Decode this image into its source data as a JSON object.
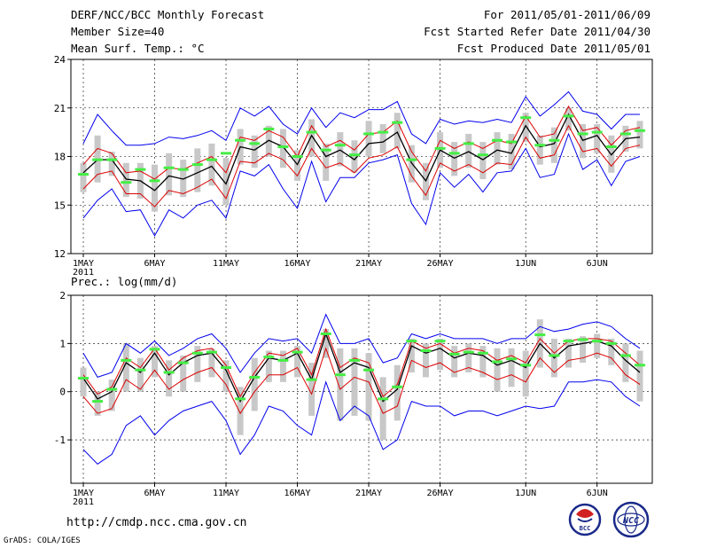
{
  "header": {
    "title": "DERF/NCC/BCC Monthly Forecast",
    "member_size": "Member Size=40",
    "variable": "Mean Surf. Temp.: °C",
    "period": "For 2011/05/01-2011/06/09",
    "started": "Fcst Started Refer Date 2011/04/30",
    "produced": "Fcst Produced Date 2011/05/01"
  },
  "footer": {
    "url": "http://cmdp.ncc.cma.gov.cn",
    "grads": "GrADS: COLA/IGES",
    "logo_bcc": "BCC",
    "logo_ncc": "NCC"
  },
  "colors": {
    "envelope": "#0000ee",
    "spread": "#dd0000",
    "mean": "#000000",
    "box": "#c8c8c8",
    "obs": "#44ee44"
  },
  "chart_data": [
    {
      "type": "line",
      "id": "temperature",
      "title": "Mean Surf. Temp.: °C",
      "ylim": [
        12,
        24
      ],
      "yticks": [
        12,
        15,
        18,
        21,
        24
      ],
      "x_tick_labels": [
        {
          "day": 1,
          "label": "1MAY",
          "sub": "2011"
        },
        {
          "day": 6,
          "label": "6MAY"
        },
        {
          "day": 11,
          "label": "11MAY"
        },
        {
          "day": 16,
          "label": "16MAY"
        },
        {
          "day": 21,
          "label": "21MAY"
        },
        {
          "day": 26,
          "label": "26MAY"
        },
        {
          "day": 32,
          "label": "1JUN"
        },
        {
          "day": 37,
          "label": "6JUN"
        }
      ],
      "days": 40,
      "series": [
        {
          "name": "mean",
          "values": [
            17.0,
            17.8,
            17.8,
            16.6,
            16.5,
            15.9,
            16.8,
            16.6,
            17.0,
            17.4,
            16.3,
            18.6,
            18.4,
            19.0,
            18.6,
            17.5,
            19.3,
            18.0,
            18.4,
            17.8,
            18.8,
            18.9,
            19.5,
            17.6,
            16.5,
            18.4,
            17.9,
            18.3,
            17.8,
            18.4,
            18.2,
            19.9,
            18.6,
            18.8,
            20.6,
            19.0,
            19.3,
            18.1,
            19.1,
            19.2
          ]
        },
        {
          "name": "upper_spread",
          "values": [
            17.5,
            18.5,
            18.2,
            17.0,
            17.1,
            16.6,
            17.3,
            17.2,
            17.6,
            18.0,
            17.0,
            19.2,
            19.0,
            19.6,
            19.2,
            18.0,
            19.9,
            18.6,
            19.0,
            18.4,
            19.4,
            19.5,
            20.2,
            18.3,
            17.1,
            19.0,
            18.5,
            18.9,
            18.5,
            19.0,
            18.8,
            20.5,
            19.2,
            19.4,
            21.1,
            19.6,
            19.8,
            18.7,
            19.6,
            19.8
          ]
        },
        {
          "name": "lower_spread",
          "values": [
            16.0,
            16.9,
            17.1,
            15.7,
            15.7,
            14.9,
            15.9,
            15.7,
            16.1,
            16.6,
            15.4,
            17.7,
            17.6,
            18.2,
            17.8,
            16.8,
            18.5,
            17.3,
            17.6,
            17.0,
            17.9,
            18.1,
            18.6,
            16.8,
            15.6,
            17.6,
            17.1,
            17.5,
            17.0,
            17.6,
            17.5,
            19.2,
            17.9,
            18.1,
            19.9,
            18.3,
            18.5,
            17.4,
            18.5,
            18.7
          ]
        },
        {
          "name": "max",
          "values": [
            18.8,
            20.6,
            19.6,
            18.7,
            18.7,
            18.8,
            19.2,
            19.1,
            19.3,
            19.6,
            19.0,
            21.0,
            20.5,
            21.1,
            20.0,
            19.4,
            21.0,
            19.8,
            20.7,
            20.4,
            20.9,
            20.9,
            21.4,
            19.4,
            18.8,
            20.3,
            20.0,
            20.2,
            20.1,
            20.3,
            20.1,
            21.7,
            20.5,
            21.2,
            22.0,
            20.8,
            20.6,
            19.7,
            20.6,
            20.6
          ]
        },
        {
          "name": "min",
          "values": [
            14.2,
            15.3,
            16.0,
            14.6,
            14.7,
            13.1,
            14.7,
            14.2,
            15.0,
            15.3,
            14.2,
            17.1,
            16.8,
            17.5,
            16.0,
            14.8,
            17.7,
            15.2,
            16.7,
            16.7,
            17.6,
            17.8,
            18.1,
            15.1,
            13.8,
            17.0,
            16.1,
            16.9,
            15.8,
            17.0,
            17.1,
            18.5,
            16.7,
            16.9,
            19.4,
            17.2,
            17.8,
            16.2,
            17.7,
            18.0
          ]
        },
        {
          "name": "box_top",
          "values": [
            17.6,
            19.3,
            18.3,
            17.6,
            17.6,
            17.5,
            18.2,
            17.8,
            18.5,
            18.8,
            17.9,
            19.7,
            19.3,
            19.9,
            19.7,
            18.4,
            20.3,
            18.8,
            19.5,
            19.0,
            20.2,
            20.0,
            20.7,
            18.7,
            17.6,
            19.5,
            18.9,
            19.4,
            18.9,
            19.5,
            19.4,
            20.7,
            19.3,
            19.8,
            21.0,
            20.0,
            20.0,
            19.3,
            19.9,
            20.2
          ]
        },
        {
          "name": "box_bottom",
          "values": [
            15.8,
            16.4,
            16.8,
            15.5,
            15.4,
            14.6,
            15.6,
            15.5,
            15.8,
            16.2,
            15.0,
            17.5,
            17.3,
            18.0,
            17.3,
            16.5,
            18.0,
            16.5,
            17.4,
            17.0,
            18.0,
            18.2,
            18.5,
            16.4,
            15.3,
            17.3,
            16.8,
            17.3,
            16.6,
            17.5,
            17.2,
            18.9,
            17.5,
            17.6,
            19.6,
            17.9,
            18.2,
            17.0,
            18.3,
            18.5
          ]
        },
        {
          "name": "observed",
          "values": [
            16.9,
            17.8,
            17.8,
            16.4,
            17.2,
            16.5,
            17.3,
            17.2,
            17.5,
            17.8,
            18.2,
            19.0,
            18.8,
            19.7,
            18.6,
            18.0,
            19.5,
            18.4,
            18.7,
            18.1,
            19.4,
            19.5,
            20.1,
            17.8,
            null,
            18.5,
            18.2,
            18.8,
            18.1,
            19.0,
            18.9,
            20.4,
            18.7,
            19.0,
            20.5,
            19.4,
            19.5,
            18.6,
            19.4,
            19.6
          ]
        }
      ]
    },
    {
      "type": "line",
      "id": "precipitation",
      "title": "Prec.: log(mm/d)",
      "ylim": [
        -1.9,
        2.0
      ],
      "yticks": [
        -1,
        0,
        1,
        2
      ],
      "x_tick_labels": [
        {
          "day": 1,
          "label": "1MAY",
          "sub": "2011"
        },
        {
          "day": 6,
          "label": "6MAY"
        },
        {
          "day": 11,
          "label": "11MAY"
        },
        {
          "day": 16,
          "label": "16MAY"
        },
        {
          "day": 21,
          "label": "21MAY"
        },
        {
          "day": 26,
          "label": "26MAY"
        },
        {
          "day": 32,
          "label": "1JUN"
        },
        {
          "day": 37,
          "label": "6JUN"
        }
      ],
      "days": 40,
      "series": [
        {
          "name": "mean",
          "values": [
            0.28,
            -0.15,
            0.0,
            0.6,
            0.4,
            0.8,
            0.35,
            0.6,
            0.75,
            0.8,
            0.45,
            -0.2,
            0.3,
            0.7,
            0.65,
            0.8,
            0.25,
            1.2,
            0.4,
            0.6,
            0.5,
            -0.2,
            0.05,
            0.95,
            0.8,
            0.9,
            0.7,
            0.8,
            0.75,
            0.55,
            0.65,
            0.5,
            1.0,
            0.7,
            0.95,
            1.0,
            1.05,
            0.95,
            0.65,
            0.4
          ]
        },
        {
          "name": "upper_spread",
          "values": [
            0.35,
            -0.05,
            0.1,
            0.7,
            0.5,
            0.9,
            0.45,
            0.7,
            0.85,
            0.9,
            0.55,
            -0.1,
            0.4,
            0.8,
            0.75,
            0.9,
            0.35,
            1.3,
            0.5,
            0.7,
            0.6,
            -0.1,
            0.15,
            1.05,
            0.9,
            1.0,
            0.8,
            0.9,
            0.85,
            0.65,
            0.75,
            0.6,
            1.1,
            0.8,
            1.05,
            1.1,
            1.1,
            1.05,
            0.8,
            0.55
          ]
        },
        {
          "name": "lower_spread",
          "values": [
            -0.1,
            -0.45,
            -0.35,
            0.25,
            0.05,
            0.45,
            0.05,
            0.25,
            0.4,
            0.5,
            0.15,
            -0.45,
            0.0,
            0.35,
            0.35,
            0.5,
            -0.05,
            0.9,
            0.05,
            0.3,
            0.2,
            -0.45,
            -0.3,
            0.65,
            0.5,
            0.6,
            0.4,
            0.5,
            0.4,
            0.25,
            0.35,
            0.2,
            0.7,
            0.4,
            0.65,
            0.7,
            0.8,
            0.7,
            0.35,
            0.15
          ]
        },
        {
          "name": "max",
          "values": [
            0.8,
            0.3,
            0.4,
            1.0,
            0.8,
            1.05,
            0.75,
            0.9,
            1.1,
            1.2,
            0.9,
            0.4,
            0.8,
            1.1,
            1.05,
            1.1,
            0.8,
            1.6,
            1.0,
            1.0,
            1.1,
            0.6,
            0.7,
            1.2,
            1.1,
            1.2,
            1.1,
            1.1,
            1.1,
            1.0,
            1.1,
            1.1,
            1.35,
            1.25,
            1.3,
            1.4,
            1.45,
            1.35,
            1.1,
            0.9
          ]
        },
        {
          "name": "min",
          "values": [
            -1.2,
            -1.5,
            -1.3,
            -0.7,
            -0.5,
            -0.9,
            -0.6,
            -0.4,
            -0.3,
            -0.2,
            -0.6,
            -1.3,
            -0.9,
            -0.3,
            -0.4,
            -0.7,
            -0.9,
            0.2,
            -0.6,
            -0.3,
            -0.5,
            -1.2,
            -1.0,
            -0.2,
            -0.3,
            -0.3,
            -0.5,
            -0.4,
            -0.4,
            -0.5,
            -0.4,
            -0.3,
            -0.35,
            -0.3,
            0.2,
            0.2,
            0.25,
            0.2,
            -0.1,
            -0.3
          ]
        },
        {
          "name": "box_top",
          "values": [
            0.5,
            0.0,
            0.25,
            1.0,
            0.7,
            0.95,
            0.65,
            0.75,
            0.95,
            0.9,
            0.65,
            0.1,
            0.7,
            0.85,
            0.85,
            0.95,
            0.6,
            1.3,
            0.9,
            0.9,
            0.8,
            0.3,
            0.55,
            1.1,
            1.0,
            1.1,
            0.95,
            1.0,
            0.95,
            0.9,
            0.9,
            0.85,
            1.5,
            1.1,
            1.1,
            1.15,
            1.2,
            1.1,
            1.0,
            0.85
          ]
        },
        {
          "name": "box_bottom",
          "values": [
            -0.1,
            -0.5,
            -0.4,
            0.0,
            0.0,
            0.3,
            -0.1,
            0.0,
            0.2,
            0.3,
            0.0,
            -0.9,
            -0.4,
            0.2,
            0.2,
            0.3,
            -0.5,
            0.7,
            -0.6,
            -0.5,
            -0.6,
            -1.0,
            -0.6,
            0.4,
            0.3,
            0.45,
            0.3,
            0.4,
            0.3,
            0.0,
            0.1,
            -0.1,
            0.5,
            0.3,
            0.5,
            0.6,
            0.7,
            0.55,
            0.2,
            -0.2
          ]
        },
        {
          "name": "observed",
          "values": [
            0.28,
            -0.2,
            0.05,
            0.65,
            0.45,
            0.88,
            0.4,
            0.6,
            0.8,
            0.82,
            0.5,
            -0.15,
            0.3,
            0.72,
            0.65,
            0.82,
            0.25,
            1.2,
            0.35,
            0.65,
            0.45,
            -0.15,
            0.1,
            1.05,
            0.85,
            1.05,
            0.78,
            0.82,
            0.8,
            0.62,
            0.68,
            0.55,
            1.18,
            0.75,
            1.05,
            1.08,
            1.05,
            1.0,
            0.75,
            0.55
          ]
        }
      ]
    }
  ]
}
